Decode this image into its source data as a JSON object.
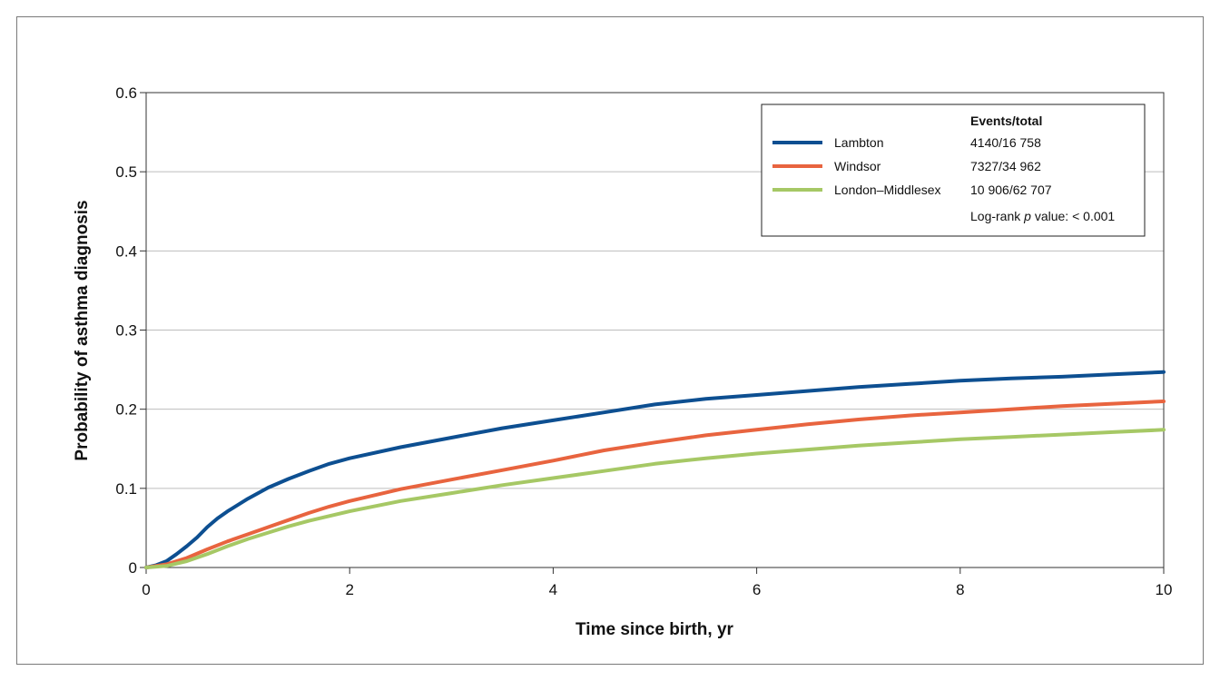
{
  "chart_data": {
    "type": "line",
    "title": "",
    "xlabel": "Time since birth, yr",
    "ylabel": "Probability of asthma diagnosis",
    "xlim": [
      0,
      10
    ],
    "ylim": [
      0,
      0.6
    ],
    "x_ticks": [
      0,
      2,
      4,
      6,
      8,
      10
    ],
    "x_tick_labels": [
      "0",
      "2",
      "4",
      "6",
      "8",
      "10"
    ],
    "y_ticks": [
      0,
      0.1,
      0.2,
      0.3,
      0.4,
      0.5,
      0.6
    ],
    "y_tick_labels": [
      "0",
      "0.1",
      "0.2",
      "0.3",
      "0.4",
      "0.5",
      "0.6"
    ],
    "grid": "horizontal",
    "legend": {
      "placement": "top-right",
      "header": "Events/total",
      "footnote_prefix": "Log-rank ",
      "footnote_p": "p",
      "footnote_suffix": " value: < 0.001"
    },
    "series": [
      {
        "name": "Lambton",
        "events_total": "4140/16 758",
        "color": "#0d4f91",
        "x": [
          0,
          0.1,
          0.2,
          0.3,
          0.4,
          0.5,
          0.6,
          0.7,
          0.8,
          1.0,
          1.2,
          1.4,
          1.6,
          1.8,
          2.0,
          2.5,
          3.0,
          3.5,
          4.0,
          4.5,
          5.0,
          5.5,
          6.0,
          6.5,
          7.0,
          7.5,
          8.0,
          8.5,
          9.0,
          9.5,
          10.0
        ],
        "y": [
          0,
          0.003,
          0.008,
          0.017,
          0.027,
          0.038,
          0.051,
          0.062,
          0.071,
          0.087,
          0.101,
          0.112,
          0.122,
          0.131,
          0.138,
          0.152,
          0.164,
          0.176,
          0.186,
          0.196,
          0.206,
          0.213,
          0.218,
          0.223,
          0.228,
          0.232,
          0.236,
          0.239,
          0.241,
          0.244,
          0.247
        ]
      },
      {
        "name": "Windsor",
        "events_total": "7327/34 962",
        "color": "#e8643f",
        "x": [
          0,
          0.2,
          0.4,
          0.6,
          0.8,
          1.0,
          1.2,
          1.4,
          1.6,
          1.8,
          2.0,
          2.5,
          3.0,
          3.5,
          4.0,
          4.5,
          5.0,
          5.5,
          6.0,
          6.5,
          7.0,
          7.5,
          8.0,
          8.5,
          9.0,
          9.5,
          10.0
        ],
        "y": [
          0,
          0.004,
          0.012,
          0.023,
          0.033,
          0.042,
          0.051,
          0.06,
          0.069,
          0.077,
          0.084,
          0.099,
          0.111,
          0.123,
          0.135,
          0.148,
          0.158,
          0.167,
          0.174,
          0.181,
          0.187,
          0.192,
          0.196,
          0.2,
          0.204,
          0.207,
          0.21
        ]
      },
      {
        "name": "London–Middlesex",
        "events_total": "10 906/62 707",
        "color": "#a6c865",
        "x": [
          0,
          0.2,
          0.4,
          0.6,
          0.8,
          1.0,
          1.2,
          1.4,
          1.6,
          1.8,
          2.0,
          2.5,
          3.0,
          3.5,
          4.0,
          4.5,
          5.0,
          5.5,
          6.0,
          6.5,
          7.0,
          7.5,
          8.0,
          8.5,
          9.0,
          9.5,
          10.0
        ],
        "y": [
          0,
          0.002,
          0.008,
          0.017,
          0.027,
          0.036,
          0.044,
          0.052,
          0.059,
          0.065,
          0.071,
          0.084,
          0.094,
          0.104,
          0.113,
          0.122,
          0.131,
          0.138,
          0.144,
          0.149,
          0.154,
          0.158,
          0.162,
          0.165,
          0.168,
          0.171,
          0.174
        ]
      }
    ]
  }
}
